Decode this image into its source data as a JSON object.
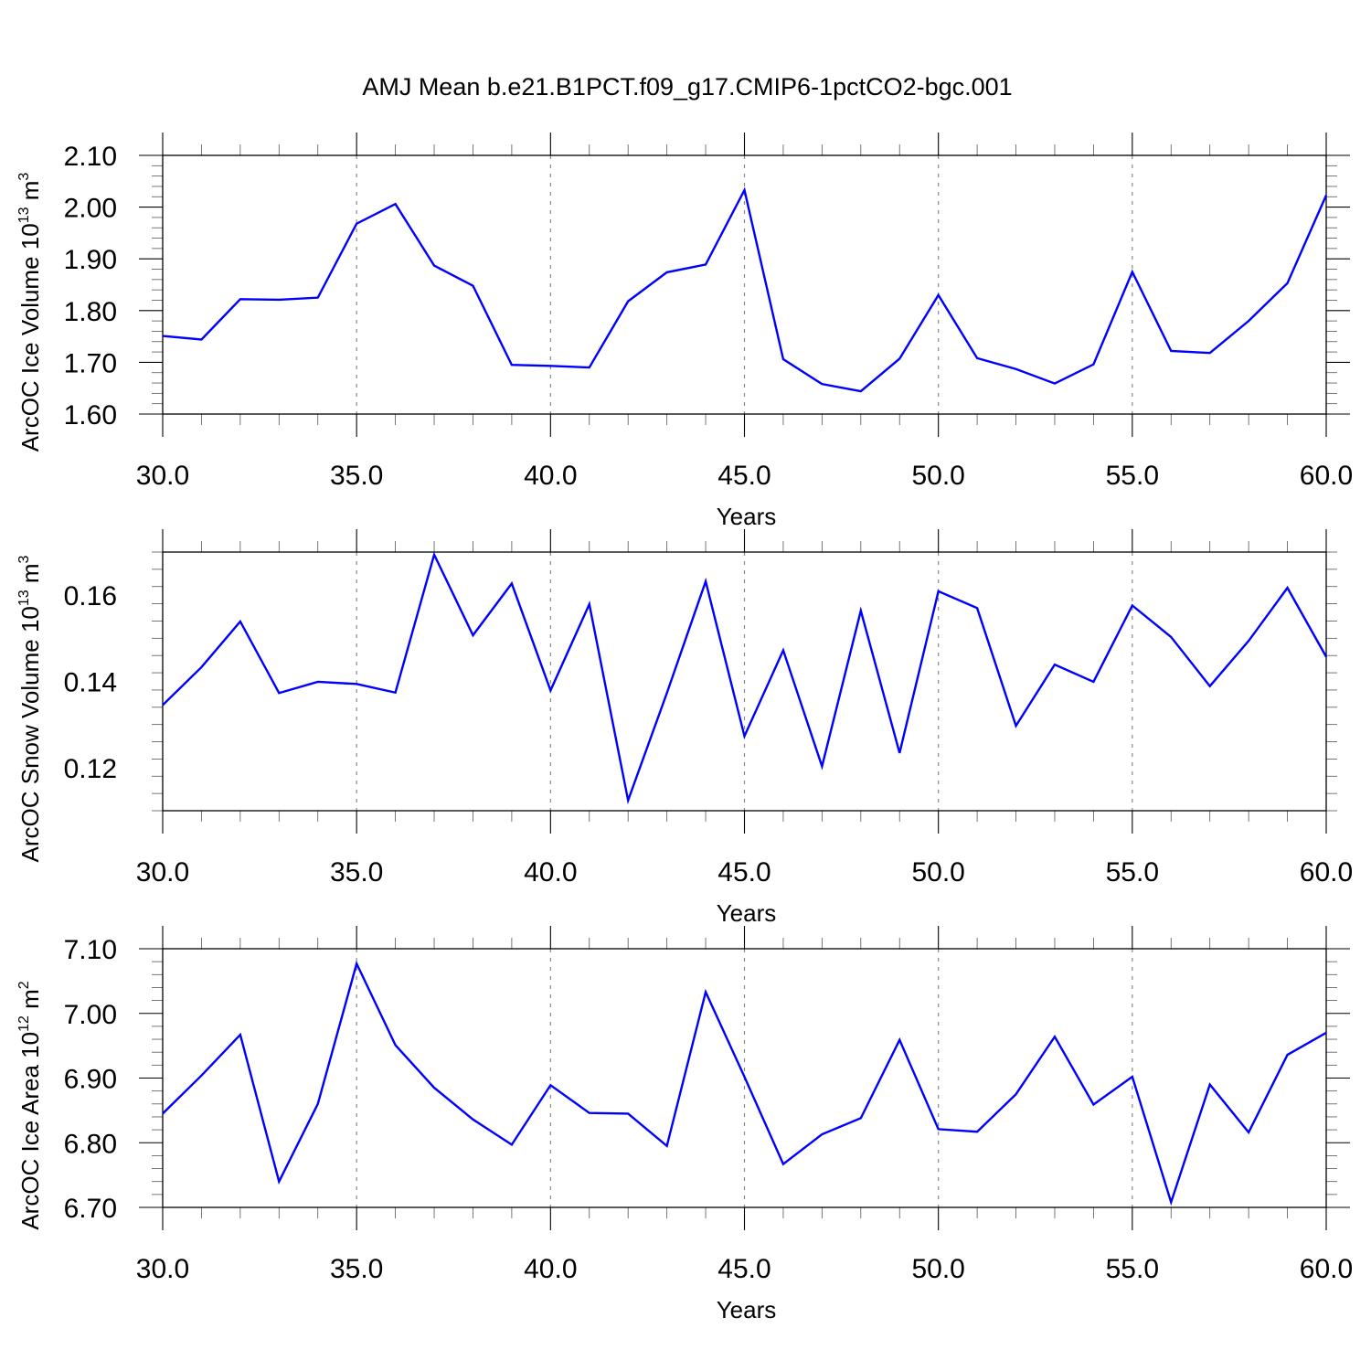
{
  "title": "AMJ Mean b.e21.B1PCT.f09_g17.CMIP6-1pctCO2-bgc.001",
  "colors": {
    "series": "#0000ff",
    "axes": "#000000",
    "grid": "#888888"
  },
  "chart_data": [
    {
      "type": "line",
      "title": "",
      "xlabel": "Years",
      "ylabel": {
        "prefix": "ArcOC Ice Volume 10",
        "exp": "13",
        "unit": " m",
        "unit_exp": "3"
      },
      "xlim": [
        30,
        60
      ],
      "ylim": [
        1.6,
        2.1
      ],
      "xticks": [
        30,
        35,
        40,
        45,
        50,
        55,
        60
      ],
      "xtick_labels": [
        "30.0",
        "35.0",
        "40.0",
        "45.0",
        "50.0",
        "55.0",
        "60.0"
      ],
      "yticks": [
        1.6,
        1.7,
        1.8,
        1.9,
        2.0,
        2.1
      ],
      "ytick_labels": [
        "1.60",
        "1.70",
        "1.80",
        "1.90",
        "2.00",
        "2.10"
      ],
      "grid": "vertical dashed at major x ticks",
      "x": [
        30,
        31,
        32,
        33,
        34,
        35,
        36,
        37,
        38,
        39,
        40,
        41,
        42,
        43,
        44,
        45,
        46,
        47,
        48,
        49,
        50,
        51,
        52,
        53,
        54,
        55,
        56,
        57,
        58,
        59,
        60
      ],
      "series": [
        {
          "values": [
            1.751,
            1.744,
            1.822,
            1.821,
            1.825,
            1.968,
            2.006,
            1.887,
            1.848,
            1.695,
            1.693,
            1.69,
            1.818,
            1.874,
            1.889,
            2.033,
            1.706,
            1.658,
            1.644,
            1.707,
            1.83,
            1.708,
            1.687,
            1.659,
            1.696,
            1.875,
            1.722,
            1.718,
            1.78,
            1.853,
            2.023
          ]
        }
      ]
    },
    {
      "type": "line",
      "title": "",
      "xlabel": "Years",
      "ylabel": {
        "prefix": "ArcOC Snow Volume 10",
        "exp": "13",
        "unit": " m",
        "unit_exp": "3"
      },
      "xlim": [
        30,
        60
      ],
      "ylim": [
        0.11,
        0.17
      ],
      "xticks": [
        30,
        35,
        40,
        45,
        50,
        55,
        60
      ],
      "xtick_labels": [
        "30.0",
        "35.0",
        "40.0",
        "45.0",
        "50.0",
        "55.0",
        "60.0"
      ],
      "yticks": [
        0.12,
        0.14,
        0.16
      ],
      "ytick_labels": [
        "0.12",
        "0.14",
        "0.16"
      ],
      "grid": "vertical dashed at major x ticks",
      "x": [
        30,
        31,
        32,
        33,
        34,
        35,
        36,
        37,
        38,
        39,
        40,
        41,
        42,
        43,
        44,
        45,
        46,
        47,
        48,
        49,
        50,
        51,
        52,
        53,
        54,
        55,
        56,
        57,
        58,
        59,
        60
      ],
      "series": [
        {
          "values": [
            0.1345,
            0.1433,
            0.1539,
            0.1373,
            0.1399,
            0.1394,
            0.1374,
            0.1694,
            0.1507,
            0.1627,
            0.1379,
            0.1579,
            0.1124,
            0.1373,
            0.1632,
            0.1273,
            0.1472,
            0.1203,
            0.1564,
            0.1234,
            0.1609,
            0.157,
            0.1297,
            0.1439,
            0.1399,
            0.1576,
            0.1503,
            0.1389,
            0.1494,
            0.1617,
            0.1457
          ]
        }
      ]
    },
    {
      "type": "line",
      "title": "",
      "xlabel": "Years",
      "ylabel": {
        "prefix": "ArcOC Ice Area 10",
        "exp": "12",
        "unit": " m",
        "unit_exp": "2"
      },
      "xlim": [
        30,
        60
      ],
      "ylim": [
        6.7,
        7.1
      ],
      "xticks": [
        30,
        35,
        40,
        45,
        50,
        55,
        60
      ],
      "xtick_labels": [
        "30.0",
        "35.0",
        "40.0",
        "45.0",
        "50.0",
        "55.0",
        "60.0"
      ],
      "yticks": [
        6.7,
        6.8,
        6.9,
        7.0,
        7.1
      ],
      "ytick_labels": [
        "6.70",
        "6.80",
        "6.90",
        "7.00",
        "7.10"
      ],
      "grid": "vertical dashed at major x ticks",
      "x": [
        30,
        31,
        32,
        33,
        34,
        35,
        36,
        37,
        38,
        39,
        40,
        41,
        42,
        43,
        44,
        45,
        46,
        47,
        48,
        49,
        50,
        51,
        52,
        53,
        54,
        55,
        56,
        57,
        58,
        59,
        60
      ],
      "series": [
        {
          "values": [
            6.845,
            6.904,
            6.967,
            6.74,
            6.86,
            7.077,
            6.951,
            6.885,
            6.836,
            6.797,
            6.889,
            6.846,
            6.845,
            6.795,
            7.033,
            6.902,
            6.767,
            6.813,
            6.838,
            6.959,
            6.821,
            6.817,
            6.875,
            6.964,
            6.859,
            6.902,
            6.708,
            6.89,
            6.816,
            6.936,
            6.97
          ]
        }
      ]
    }
  ]
}
